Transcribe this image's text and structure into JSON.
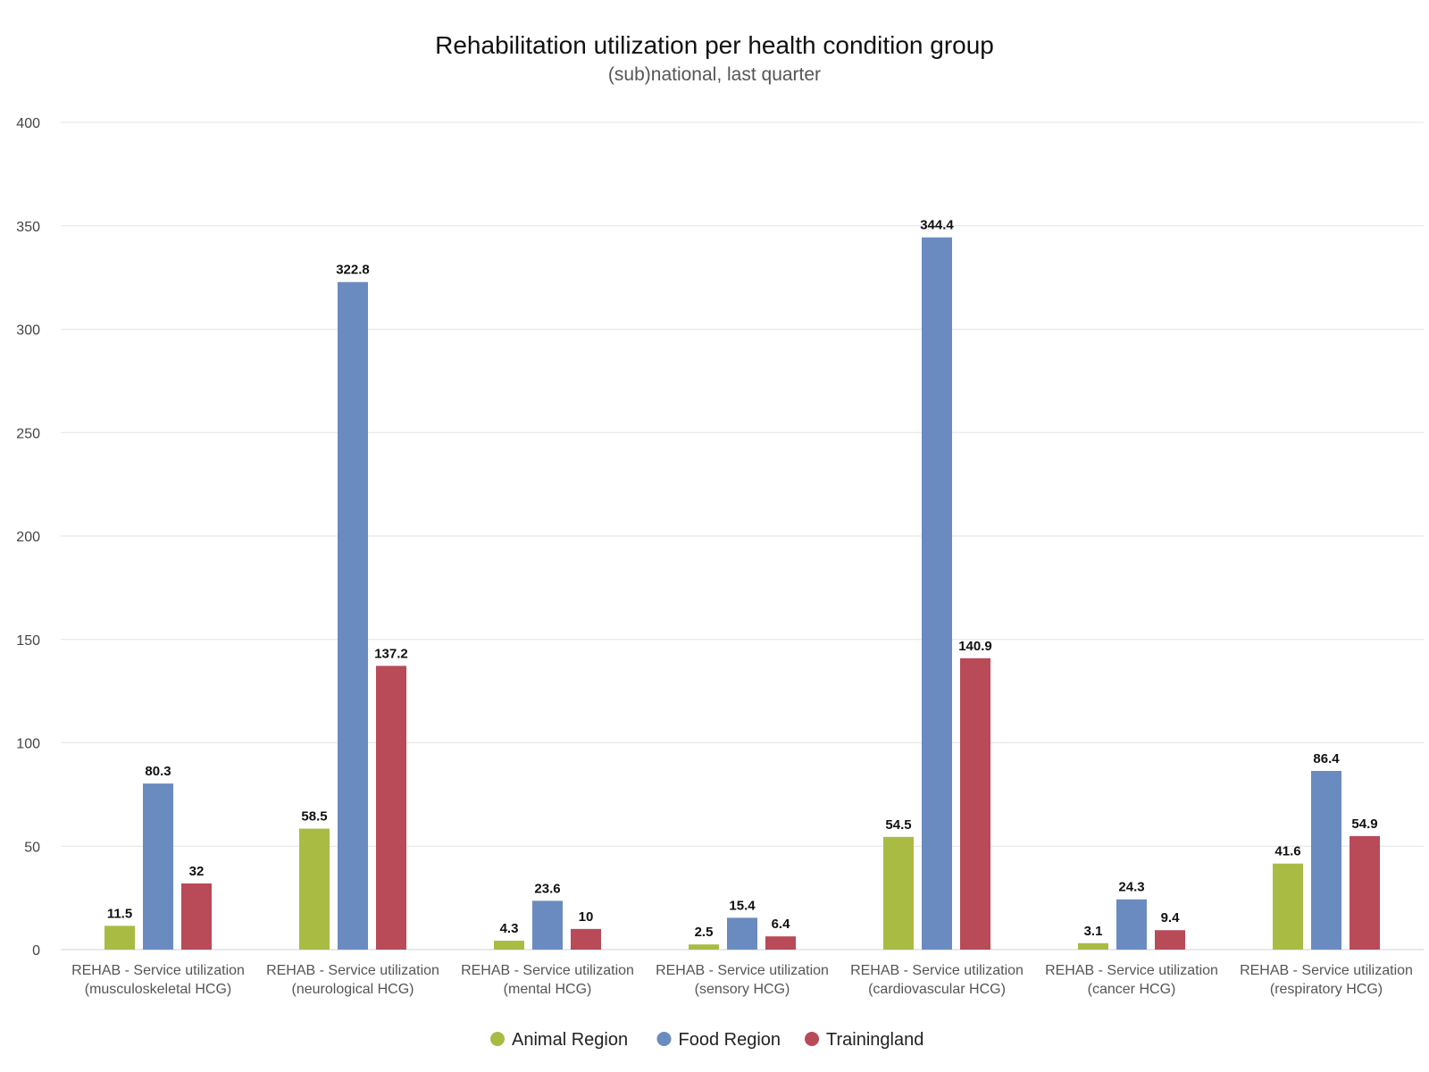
{
  "chart_data": {
    "type": "bar",
    "title": "Rehabilitation utilization per health condition group",
    "subtitle": "(sub)national, last quarter",
    "categories": [
      [
        "REHAB - Service utilization",
        "(musculoskeletal HCG)"
      ],
      [
        "REHAB - Service utilization",
        "(neurological HCG)"
      ],
      [
        "REHAB - Service utilization",
        "(mental HCG)"
      ],
      [
        "REHAB - Service utilization",
        "(sensory HCG)"
      ],
      [
        "REHAB - Service utilization",
        "(cardiovascular HCG)"
      ],
      [
        "REHAB - Service utilization",
        "(cancer HCG)"
      ],
      [
        "REHAB - Service utilization",
        "(respiratory HCG)"
      ]
    ],
    "series": [
      {
        "name": "Animal Region",
        "color": "#aabb44",
        "values": [
          11.5,
          58.5,
          4.3,
          2.5,
          54.5,
          3.1,
          41.6
        ]
      },
      {
        "name": "Food Region",
        "color": "#6a8bbf",
        "values": [
          80.3,
          322.8,
          23.6,
          15.4,
          344.4,
          24.3,
          86.4
        ]
      },
      {
        "name": "Trainingland",
        "color": "#b94a58",
        "values": [
          32,
          137.2,
          10,
          6.4,
          140.9,
          9.4,
          54.9
        ]
      }
    ],
    "ylim": [
      0,
      400
    ],
    "yticks": [
      0,
      50,
      100,
      150,
      200,
      250,
      300,
      350,
      400
    ],
    "xlabel": "",
    "ylabel": "",
    "grid": true,
    "legend_position": "bottom-center",
    "data_labels": true
  }
}
